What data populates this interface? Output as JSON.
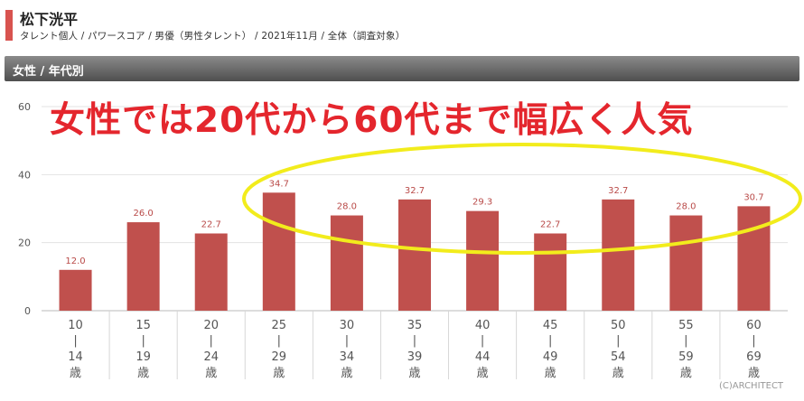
{
  "header": {
    "name": "松下洸平",
    "breadcrumb": "タレント個人 / パワースコア / 男優（男性タレント） / 2021年11月 / 全体（調査対象）"
  },
  "section": {
    "title": "女性 / 年代別"
  },
  "headline": "女性では20代から60代まで幅広く人気",
  "credit": "(C)ARCHITECT",
  "colors": {
    "bar": "#c0504d",
    "accent": "#d8534f",
    "headline": "#e4262d",
    "highlight": "#f2ec1c"
  },
  "chart_data": {
    "type": "bar",
    "categories": [
      "10|14歳",
      "15|19歳",
      "20|24歳",
      "25|29歳",
      "30|34歳",
      "35|39歳",
      "40|44歳",
      "45|49歳",
      "50|54歳",
      "55|59歳",
      "60|69歳"
    ],
    "category_lines": [
      [
        "10",
        "|",
        "14",
        "歳"
      ],
      [
        "15",
        "|",
        "19",
        "歳"
      ],
      [
        "20",
        "|",
        "24",
        "歳"
      ],
      [
        "25",
        "|",
        "29",
        "歳"
      ],
      [
        "30",
        "|",
        "34",
        "歳"
      ],
      [
        "35",
        "|",
        "39",
        "歳"
      ],
      [
        "40",
        "|",
        "44",
        "歳"
      ],
      [
        "45",
        "|",
        "49",
        "歳"
      ],
      [
        "50",
        "|",
        "54",
        "歳"
      ],
      [
        "55",
        "|",
        "59",
        "歳"
      ],
      [
        "60",
        "|",
        "69",
        "歳"
      ]
    ],
    "values": [
      12.0,
      26.0,
      22.7,
      34.7,
      28.0,
      32.7,
      29.3,
      22.7,
      32.7,
      28.0,
      30.7
    ],
    "value_labels": [
      "12.0",
      "26.0",
      "22.7",
      "34.7",
      "28.0",
      "32.7",
      "29.3",
      "22.7",
      "32.7",
      "28.0",
      "30.7"
    ],
    "ylim": [
      0,
      60
    ],
    "yticks": [
      "0",
      "20",
      "40",
      "60"
    ],
    "grid": true
  }
}
